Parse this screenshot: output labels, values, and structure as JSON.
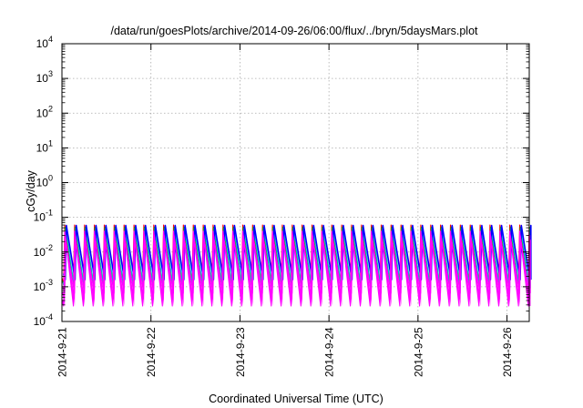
{
  "chart_data": {
    "type": "line",
    "title": "/data/run/goesPlots/archive/2014-09-26/06:00/flux/../bryn/5daysMars.plot",
    "xlabel": "Coordinated Universal Time (UTC)",
    "ylabel": "cGy/day",
    "yscale": "log",
    "ylim": [
      0.0001,
      10000
    ],
    "xlim": [
      "2014-09-21T00:00",
      "2014-09-26T06:00"
    ],
    "grid": true,
    "x_ticks": [
      "2014-9-21",
      "2014-9-22",
      "2014-9-23",
      "2014-9-24",
      "2014-9-25",
      "2014-9-26"
    ],
    "y_ticks": [
      {
        "base": "10",
        "exp": "-4"
      },
      {
        "base": "10",
        "exp": "-3"
      },
      {
        "base": "10",
        "exp": "-2"
      },
      {
        "base": "10",
        "exp": "-1"
      },
      {
        "base": "10",
        "exp": "0"
      },
      {
        "base": "10",
        "exp": "1"
      },
      {
        "base": "10",
        "exp": "2"
      },
      {
        "base": "10",
        "exp": "3"
      },
      {
        "base": "10",
        "exp": "4"
      }
    ],
    "pattern": {
      "cycles_per_day": 9,
      "first_peak": "2014-09-21T00:45",
      "note": "sawtooth: sharp rise to peak then decay to trough"
    },
    "series": [
      {
        "color": "#ff0000",
        "peak": 0.06,
        "trough": 0.0012
      },
      {
        "color": "#00bb00",
        "peak": 0.052,
        "trough": 0.001
      },
      {
        "color": "#00c8c8",
        "peak": 0.048,
        "trough": 0.0009
      },
      {
        "color": "#0000ff",
        "peak": 0.058,
        "trough": 0.0016
      },
      {
        "color": "#ff00ff",
        "peak": 0.04,
        "trough": 0.00028
      },
      {
        "color": "#ff00ff",
        "peak": 0.03,
        "trough": 0.00045
      },
      {
        "color": "#ff00ff",
        "peak": 0.022,
        "trough": 0.00065
      }
    ]
  }
}
